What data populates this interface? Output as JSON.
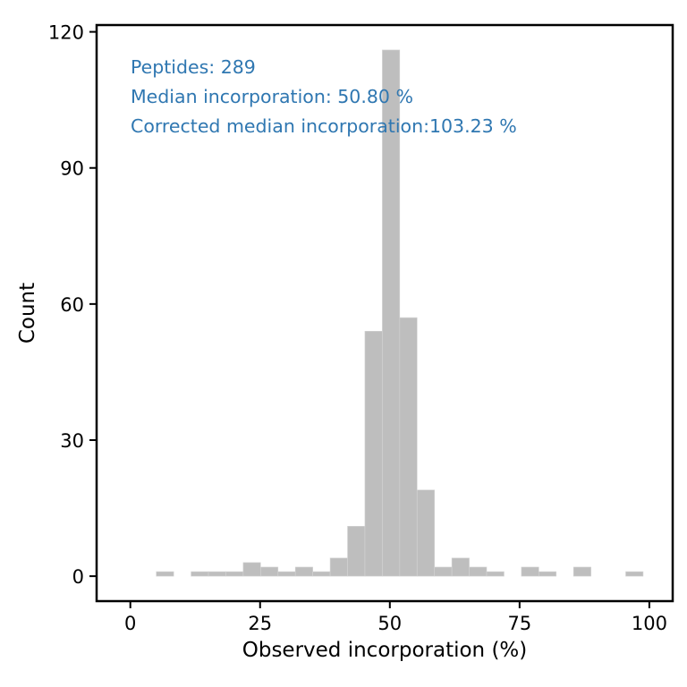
{
  "chart_data": {
    "type": "bar",
    "subtype": "histogram",
    "xlabel": "Observed incorporation (%)",
    "ylabel": "Count",
    "xlim": [
      -6.5,
      104.5
    ],
    "ylim": [
      -5.5,
      121.5
    ],
    "x_ticks": [
      0,
      25,
      50,
      75,
      100
    ],
    "y_ticks": [
      0,
      30,
      60,
      90,
      120
    ],
    "grid": false,
    "bar_color": "#bebebe",
    "annotation_color": "#2f77b1",
    "annotations": [
      "Peptides: 289",
      "Median incorporation: 50.80 %",
      "Corrected median incorporation:103.23 %"
    ],
    "bins": [
      {
        "x0": 5.0,
        "x1": 8.35,
        "count": 1
      },
      {
        "x0": 11.7,
        "x1": 15.05,
        "count": 1
      },
      {
        "x0": 15.05,
        "x1": 18.4,
        "count": 1
      },
      {
        "x0": 18.4,
        "x1": 21.75,
        "count": 1
      },
      {
        "x0": 21.75,
        "x1": 25.1,
        "count": 3
      },
      {
        "x0": 25.1,
        "x1": 28.45,
        "count": 2
      },
      {
        "x0": 28.45,
        "x1": 31.8,
        "count": 1
      },
      {
        "x0": 31.8,
        "x1": 35.15,
        "count": 2
      },
      {
        "x0": 35.15,
        "x1": 38.5,
        "count": 1
      },
      {
        "x0": 38.5,
        "x1": 41.85,
        "count": 4
      },
      {
        "x0": 41.85,
        "x1": 45.2,
        "count": 11
      },
      {
        "x0": 45.2,
        "x1": 48.55,
        "count": 54
      },
      {
        "x0": 48.55,
        "x1": 51.9,
        "count": 116
      },
      {
        "x0": 51.9,
        "x1": 55.25,
        "count": 57
      },
      {
        "x0": 55.25,
        "x1": 58.6,
        "count": 19
      },
      {
        "x0": 58.6,
        "x1": 61.95,
        "count": 2
      },
      {
        "x0": 61.95,
        "x1": 65.3,
        "count": 4
      },
      {
        "x0": 65.3,
        "x1": 68.65,
        "count": 2
      },
      {
        "x0": 68.65,
        "x1": 72.0,
        "count": 1
      },
      {
        "x0": 75.35,
        "x1": 78.7,
        "count": 2
      },
      {
        "x0": 78.7,
        "x1": 82.05,
        "count": 1
      },
      {
        "x0": 85.4,
        "x1": 88.75,
        "count": 2
      },
      {
        "x0": 95.45,
        "x1": 98.8,
        "count": 1
      }
    ]
  }
}
